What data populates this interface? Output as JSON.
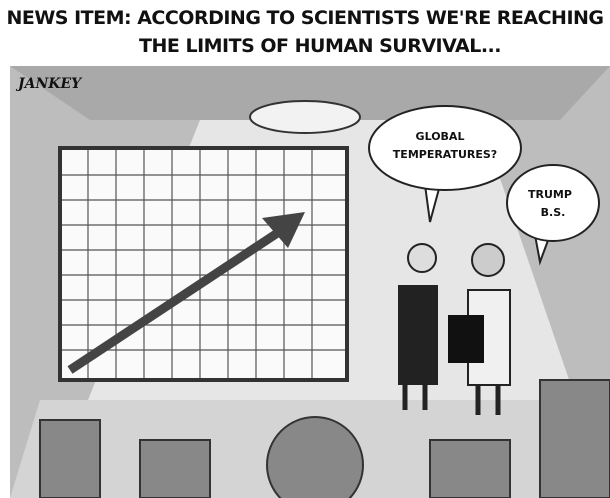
{
  "caption": {
    "lines": [
      "NEWS ITEM: ACCORDING TO SCIENTISTS WE'RE REACHING",
      "THE LIMITS OF HUMAN SURVIVAL..."
    ]
  },
  "signature": "JANKEY",
  "bubbles": [
    {
      "lines": [
        "GLOBAL",
        "TEMPERATURES?"
      ]
    },
    {
      "lines": [
        "TRUMP",
        "B.S."
      ]
    }
  ]
}
